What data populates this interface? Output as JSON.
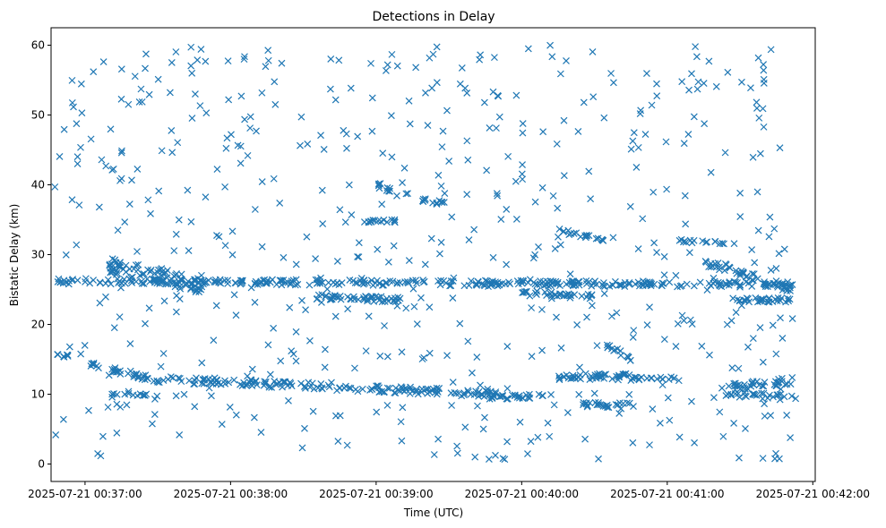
{
  "chart_data": {
    "type": "scatter",
    "title": "Detections in Delay",
    "xlabel": "Time (UTC)",
    "ylabel": "Bistatic Delay (km)",
    "marker": "x",
    "color": "#1f77b4",
    "x_ticks": [
      "2025-07-21 00:37:00",
      "2025-07-21 00:38:00",
      "2025-07-21 00:39:00",
      "2025-07-21 00:40:00",
      "2025-07-21 00:41:00",
      "2025-07-21 00:42:00"
    ],
    "y_ticks": [
      "0",
      "10",
      "20",
      "30",
      "40",
      "50",
      "60"
    ],
    "xlim": [
      "2025-07-21 00:36:46",
      "2025-07-21 00:42:01"
    ],
    "ylim": [
      -2.5,
      62.5
    ],
    "grid": false,
    "legend": false,
    "series": [
      {
        "bands": [
          {
            "start": "2025-07-21 00:36:47",
            "end": "2025-07-21 00:41:53",
            "y0": 26.2,
            "y1": 25.7,
            "jitter": 0.4,
            "count": 320
          },
          {
            "start": "2025-07-21 00:37:10",
            "end": "2025-07-21 00:37:50",
            "y0": 28.5,
            "y1": 25.5,
            "jitter": 1.2,
            "count": 90
          },
          {
            "start": "2025-07-21 00:38:35",
            "end": "2025-07-21 00:39:10",
            "y0": 24.0,
            "y1": 23.5,
            "jitter": 0.4,
            "count": 50
          },
          {
            "start": "2025-07-21 00:40:00",
            "end": "2025-07-21 00:40:30",
            "y0": 24.5,
            "y1": 24.0,
            "jitter": 0.4,
            "count": 35
          },
          {
            "start": "2025-07-21 00:40:15",
            "end": "2025-07-21 00:40:35",
            "y0": 33.5,
            "y1": 32.0,
            "jitter": 0.3,
            "count": 20
          },
          {
            "start": "2025-07-21 00:41:05",
            "end": "2025-07-21 00:41:30",
            "y0": 32.0,
            "y1": 31.5,
            "jitter": 0.2,
            "count": 15
          },
          {
            "start": "2025-07-21 00:41:15",
            "end": "2025-07-21 00:41:52",
            "y0": 29.0,
            "y1": 25.0,
            "jitter": 0.6,
            "count": 50
          },
          {
            "start": "2025-07-21 00:41:25",
            "end": "2025-07-21 00:41:52",
            "y0": 23.5,
            "y1": 23.5,
            "jitter": 0.3,
            "count": 30
          },
          {
            "start": "2025-07-21 00:39:00",
            "end": "2025-07-21 00:39:30",
            "y0": 40.0,
            "y1": 37.0,
            "jitter": 0.4,
            "count": 25
          },
          {
            "start": "2025-07-21 00:38:55",
            "end": "2025-07-21 00:39:10",
            "y0": 34.8,
            "y1": 34.8,
            "jitter": 0.2,
            "count": 15
          },
          {
            "start": "2025-07-21 00:36:47",
            "end": "2025-07-21 00:36:53",
            "y0": 15.5,
            "y1": 15.5,
            "jitter": 0.2,
            "count": 8
          },
          {
            "start": "2025-07-21 00:37:00",
            "end": "2025-07-21 00:37:30",
            "y0": 14.5,
            "y1": 12.0,
            "jitter": 0.4,
            "count": 35
          },
          {
            "start": "2025-07-21 00:37:30",
            "end": "2025-07-21 00:39:50",
            "y0": 12.2,
            "y1": 10.0,
            "jitter": 0.5,
            "count": 160
          },
          {
            "start": "2025-07-21 00:39:45",
            "end": "2025-07-21 00:40:10",
            "y0": 9.5,
            "y1": 9.8,
            "jitter": 0.3,
            "count": 30
          },
          {
            "start": "2025-07-21 00:40:15",
            "end": "2025-07-21 00:40:45",
            "y0": 12.5,
            "y1": 12.5,
            "jitter": 0.5,
            "count": 45
          },
          {
            "start": "2025-07-21 00:40:25",
            "end": "2025-07-21 00:40:45",
            "y0": 8.5,
            "y1": 8.5,
            "jitter": 0.4,
            "count": 25
          },
          {
            "start": "2025-07-21 00:40:35",
            "end": "2025-07-21 00:40:45",
            "y0": 17.0,
            "y1": 15.0,
            "jitter": 0.4,
            "count": 15
          },
          {
            "start": "2025-07-21 00:40:45",
            "end": "2025-07-21 00:41:05",
            "y0": 12.2,
            "y1": 12.2,
            "jitter": 0.3,
            "count": 20
          },
          {
            "start": "2025-07-21 00:41:25",
            "end": "2025-07-21 00:41:52",
            "y0": 11.0,
            "y1": 12.0,
            "jitter": 0.6,
            "count": 35
          },
          {
            "start": "2025-07-21 00:41:25",
            "end": "2025-07-21 00:41:52",
            "y0": 10.0,
            "y1": 9.5,
            "jitter": 0.4,
            "count": 25
          },
          {
            "start": "2025-07-21 00:37:10",
            "end": "2025-07-21 00:37:30",
            "y0": 10.0,
            "y1": 9.5,
            "jitter": 0.4,
            "count": 15
          }
        ],
        "scatter": {
          "start": "2025-07-21 00:36:47",
          "end": "2025-07-21 00:41:53",
          "ymin": 0.5,
          "ymax": 60.0,
          "count": 560
        }
      }
    ]
  }
}
